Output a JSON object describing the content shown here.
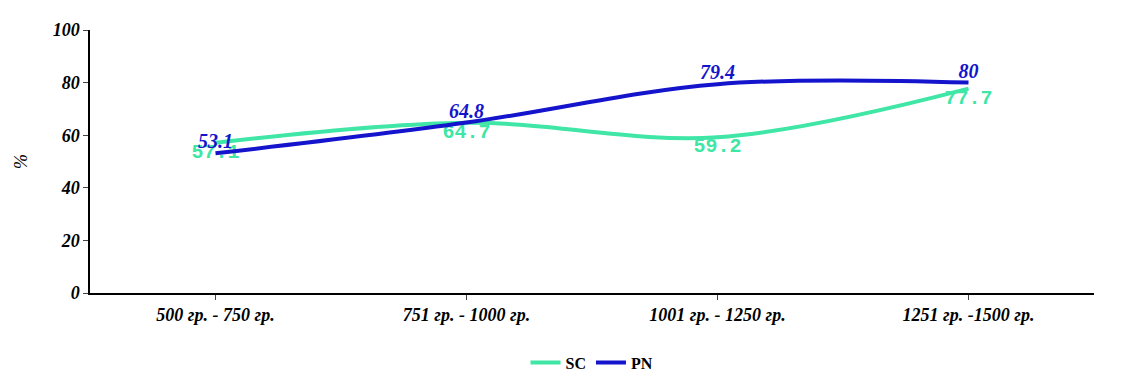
{
  "chart_data": {
    "type": "line",
    "categories": [
      "500 гр. - 750 гр.",
      "751 гр. - 1000 гр.",
      "1001 гр. - 1250 гр.",
      "1251 гр. -1500 гр."
    ],
    "series": [
      {
        "name": "SC",
        "color": "#3fe6a6",
        "values": [
          57.1,
          64.7,
          59.2,
          77.7
        ],
        "line_style": "smooth"
      },
      {
        "name": "PN",
        "color": "#1414cc",
        "values": [
          53.1,
          64.8,
          79.4,
          80
        ],
        "line_style": "smooth"
      }
    ],
    "y_label": "%",
    "ylim": [
      0,
      100
    ],
    "yticks": [
      0,
      20,
      40,
      60,
      80,
      100
    ],
    "grid": false,
    "legend": "bottom",
    "data_labels": true
  }
}
